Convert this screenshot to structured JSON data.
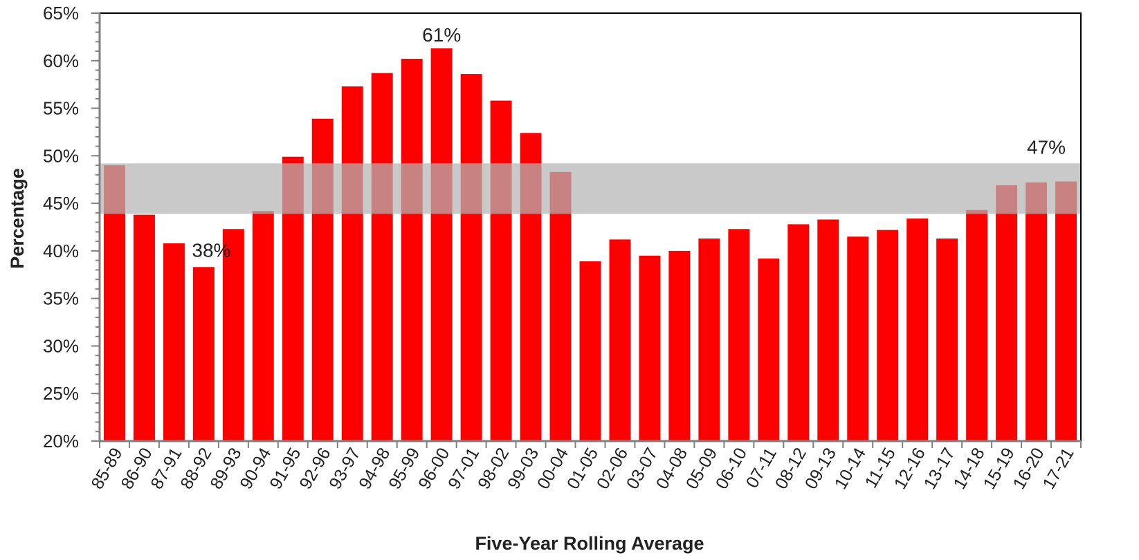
{
  "chart_data": {
    "type": "bar",
    "title": "",
    "xlabel": "Five-Year Rolling Average",
    "ylabel": "Percentage",
    "ylim": [
      20,
      65
    ],
    "yticks": [
      20,
      25,
      30,
      35,
      40,
      45,
      50,
      55,
      60,
      65
    ],
    "ytick_labels": [
      "20%",
      "25%",
      "30%",
      "35%",
      "40%",
      "45%",
      "50%",
      "55%",
      "60%",
      "65%"
    ],
    "y_minor_step": 1,
    "categories": [
      "85-89",
      "86-90",
      "87-91",
      "88-92",
      "89-93",
      "90-94",
      "91-95",
      "92-96",
      "93-97",
      "94-98",
      "95-99",
      "96-00",
      "97-01",
      "98-02",
      "99-03",
      "00-04",
      "01-05",
      "02-06",
      "03-07",
      "04-08",
      "05-09",
      "06-10",
      "07-11",
      "08-12",
      "09-13",
      "10-14",
      "11-15",
      "12-16",
      "13-17",
      "14-18",
      "15-19",
      "16-20",
      "17-21"
    ],
    "values": [
      49.0,
      43.8,
      40.8,
      38.3,
      42.3,
      44.2,
      49.9,
      53.9,
      57.3,
      58.7,
      60.2,
      61.3,
      58.6,
      55.8,
      52.4,
      48.3,
      38.9,
      41.2,
      39.5,
      40.0,
      41.3,
      42.3,
      39.2,
      42.8,
      43.3,
      41.5,
      42.2,
      43.4,
      41.3,
      44.3,
      46.9,
      47.2,
      47.3
    ],
    "bar_color": "#ff0000",
    "band": {
      "from": 43.9,
      "to": 49.2,
      "color": "#b4b4b4"
    },
    "grid": false,
    "legend": "none",
    "annotations": [
      {
        "category": "88-92",
        "text": "38%"
      },
      {
        "category": "96-00",
        "text": "61%"
      },
      {
        "category": "17-21",
        "text": "47%"
      }
    ]
  }
}
